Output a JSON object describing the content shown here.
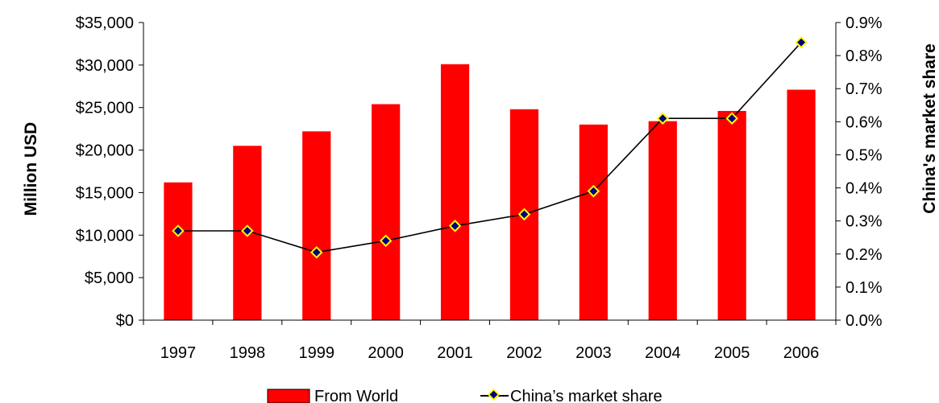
{
  "chart_data": {
    "type": "bar",
    "categories": [
      "1997",
      "1998",
      "1999",
      "2000",
      "2001",
      "2002",
      "2003",
      "2004",
      "2005",
      "2006"
    ],
    "series": [
      {
        "name": "From World",
        "type": "bar",
        "axis": "left",
        "color": "#ff0000",
        "values": [
          16200,
          20500,
          22200,
          25400,
          30100,
          24800,
          23000,
          23400,
          24600,
          27100
        ]
      },
      {
        "name": "China’s market share",
        "type": "line",
        "axis": "right",
        "color": "#000000",
        "marker_fill": "#000080",
        "marker_stroke": "#ffff00",
        "values": [
          0.27,
          0.27,
          0.205,
          0.24,
          0.285,
          0.32,
          0.39,
          0.61,
          0.61,
          0.84
        ]
      }
    ],
    "ylabel": "Million USD",
    "y2label": "China's market share",
    "ylim": [
      0,
      35000
    ],
    "y2lim": [
      0,
      0.9
    ],
    "yticks": [
      "$0",
      "$5,000",
      "$10,000",
      "$15,000",
      "$20,000",
      "$25,000",
      "$30,000",
      "$35,000"
    ],
    "y2ticks": [
      "0.0%",
      "0.1%",
      "0.2%",
      "0.3%",
      "0.4%",
      "0.5%",
      "0.6%",
      "0.7%",
      "0.8%",
      "0.9%"
    ],
    "grid": false,
    "legend_position": "bottom"
  }
}
